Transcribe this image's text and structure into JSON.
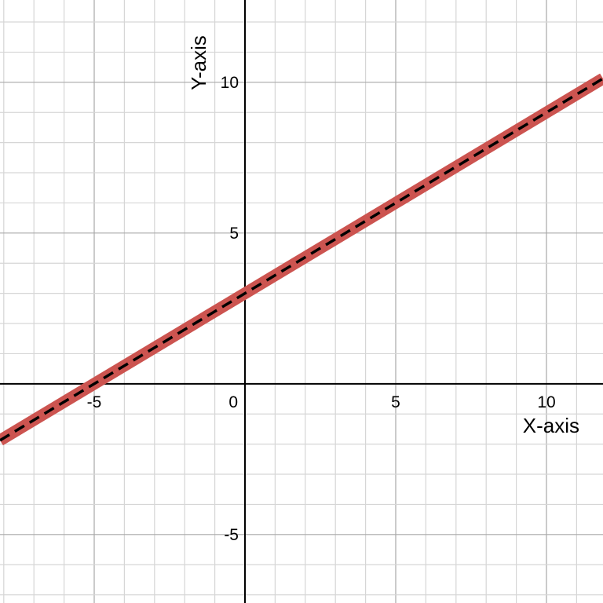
{
  "chart_data": {
    "type": "line",
    "title": "",
    "xlabel": "X-axis",
    "ylabel": "Y-axis",
    "xlim": [
      -8.125,
      11.875
    ],
    "ylim": [
      -7.27,
      12.73
    ],
    "grid": true,
    "grid_minor_step": 1,
    "grid_major_step": 5,
    "x_ticks": [
      -5,
      0,
      5,
      10
    ],
    "x_tick_labels": [
      "-5",
      "0",
      "5",
      "10"
    ],
    "y_ticks": [
      -5,
      5,
      10
    ],
    "y_tick_labels": [
      "-5",
      "5",
      "10"
    ],
    "series": [
      {
        "equation": "y = 0.6x + 3",
        "slope": 0.6,
        "intercept": 3,
        "x": [
          -8.125,
          11.875
        ],
        "y": [
          -1.875,
          10.125
        ],
        "color": "#c0392b",
        "style": "thick solid, black dashed overlay"
      }
    ],
    "colors": {
      "band": "#cc5450",
      "dash": "#000000",
      "grid_minor": "#d6d6d6",
      "grid_major": "#a8a8a8",
      "axis": "#000000"
    }
  }
}
